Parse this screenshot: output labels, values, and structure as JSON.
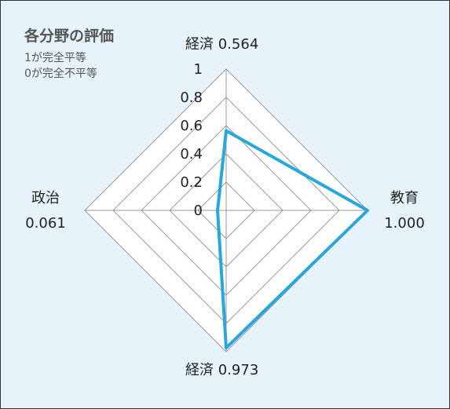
{
  "chart_data": {
    "type": "radar",
    "title": "各分野の評価",
    "notes": [
      "1が完全平等",
      "0が完全不平等"
    ],
    "ticks": [
      "0",
      "0.2",
      "0.4",
      "0.6",
      "0.8",
      "1"
    ],
    "rlim": [
      0,
      1
    ],
    "axes": [
      {
        "name": "経済",
        "value": 0.564,
        "value_label": "0.564"
      },
      {
        "name": "教育",
        "value": 1.0,
        "value_label": "1.000"
      },
      {
        "name": "経済",
        "value": 0.973,
        "value_label": "0.973"
      },
      {
        "name": "政治",
        "value": 0.061,
        "value_label": "0.061"
      }
    ],
    "colors": {
      "background": "#e6f3fb",
      "grid": "#999999",
      "series": "#29a6dc",
      "text": "#222222"
    }
  }
}
